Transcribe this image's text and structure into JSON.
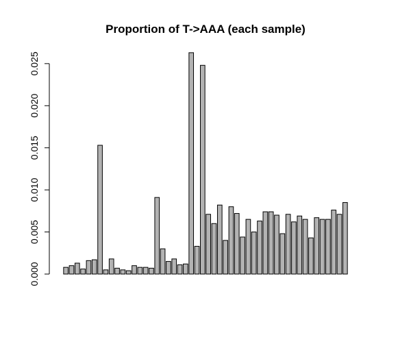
{
  "chart_data": {
    "type": "bar",
    "title": "Proportion of T->AAA (each sample)",
    "xlabel": "",
    "ylabel": "",
    "ylim": [
      0,
      0.026
    ],
    "yticks": [
      "0.000",
      "0.005",
      "0.010",
      "0.015",
      "0.020",
      "0.025"
    ],
    "ytick_values": [
      0,
      0.005,
      0.01,
      0.015,
      0.02,
      0.025
    ],
    "grid": false,
    "bar_color": "#b3b3b3",
    "values": [
      0.0008,
      0.001,
      0.0013,
      0.0006,
      0.0016,
      0.0017,
      0.0153,
      0.0005,
      0.0018,
      0.0007,
      0.0005,
      0.0004,
      0.001,
      0.0008,
      0.0008,
      0.0007,
      0.0091,
      0.003,
      0.0015,
      0.0018,
      0.0011,
      0.0012,
      0.0263,
      0.0033,
      0.0248,
      0.0071,
      0.006,
      0.0082,
      0.004,
      0.008,
      0.0072,
      0.0044,
      0.0065,
      0.005,
      0.0063,
      0.0074,
      0.0074,
      0.007,
      0.0048,
      0.0071,
      0.0062,
      0.0069,
      0.0065,
      0.0043,
      0.0067,
      0.0065,
      0.0065,
      0.0076,
      0.0071,
      0.0085
    ]
  }
}
